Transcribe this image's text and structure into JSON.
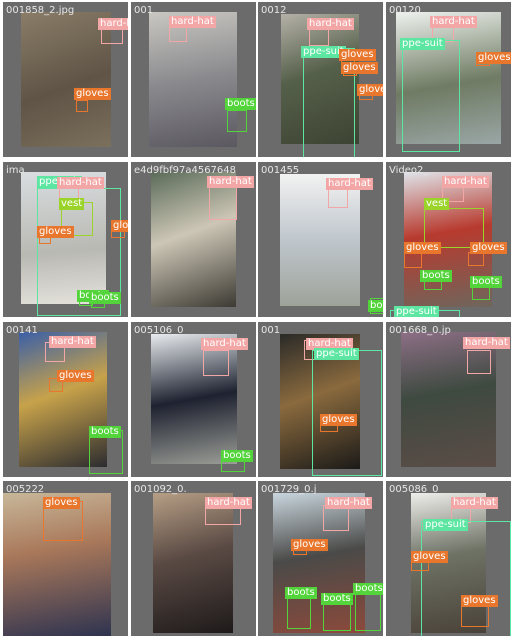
{
  "classes": [
    "hard-hat",
    "gloves",
    "boots",
    "ppe-suit",
    "vest"
  ],
  "class_colors": {
    "hard-hat": "#f3a6a6",
    "gloves": "#e8772d",
    "boots": "#52d43a",
    "ppe-suit": "#5ce6a2",
    "vest": "#9ad32a"
  },
  "tiles": [
    {
      "filename": "001858_2.jpg",
      "labels": [
        "hard-hat",
        "gloves"
      ]
    },
    {
      "filename": "001",
      "labels": [
        "hard-hat",
        "boots"
      ]
    },
    {
      "filename": "0012",
      "labels": [
        "hard-hat",
        "ppe-suit",
        "gloves",
        "gloves",
        "gloves"
      ]
    },
    {
      "filename": "00120",
      "labels": [
        "hard-hat",
        "ppe-suit",
        "gloves"
      ]
    },
    {
      "filename": "ima",
      "labels": [
        "ppe-suit",
        "hard-hat",
        "vest",
        "gloves",
        "gloves",
        "boots",
        "boots"
      ]
    },
    {
      "filename": "e4d9fbf97a4567648",
      "labels": [
        "hard-hat"
      ]
    },
    {
      "filename": "001455",
      "labels": [
        "hard-hat",
        "boots"
      ]
    },
    {
      "filename": "Video2_",
      "labels": [
        "hard-hat",
        "vest",
        "gloves",
        "gloves",
        "boots",
        "boots",
        "ppe-suit"
      ]
    },
    {
      "filename": "00141",
      "labels": [
        "hard-hat",
        "gloves",
        "boots"
      ]
    },
    {
      "filename": "005106_0",
      "labels": [
        "hard-hat",
        "boots"
      ]
    },
    {
      "filename": "001",
      "labels": [
        "hard-hat",
        "ppe-suit",
        "gloves"
      ]
    },
    {
      "filename": "001668_0.jp",
      "labels": [
        "hard-hat"
      ]
    },
    {
      "filename": "005222",
      "labels": [
        "gloves"
      ]
    },
    {
      "filename": "001092_0.",
      "labels": [
        "hard-hat"
      ]
    },
    {
      "filename": "001729_0.j",
      "labels": [
        "hard-hat",
        "gloves",
        "boots",
        "boots",
        "boots"
      ]
    },
    {
      "filename": "005086_0",
      "labels": [
        "hard-hat",
        "ppe-suit",
        "gloves",
        "gloves"
      ]
    }
  ]
}
